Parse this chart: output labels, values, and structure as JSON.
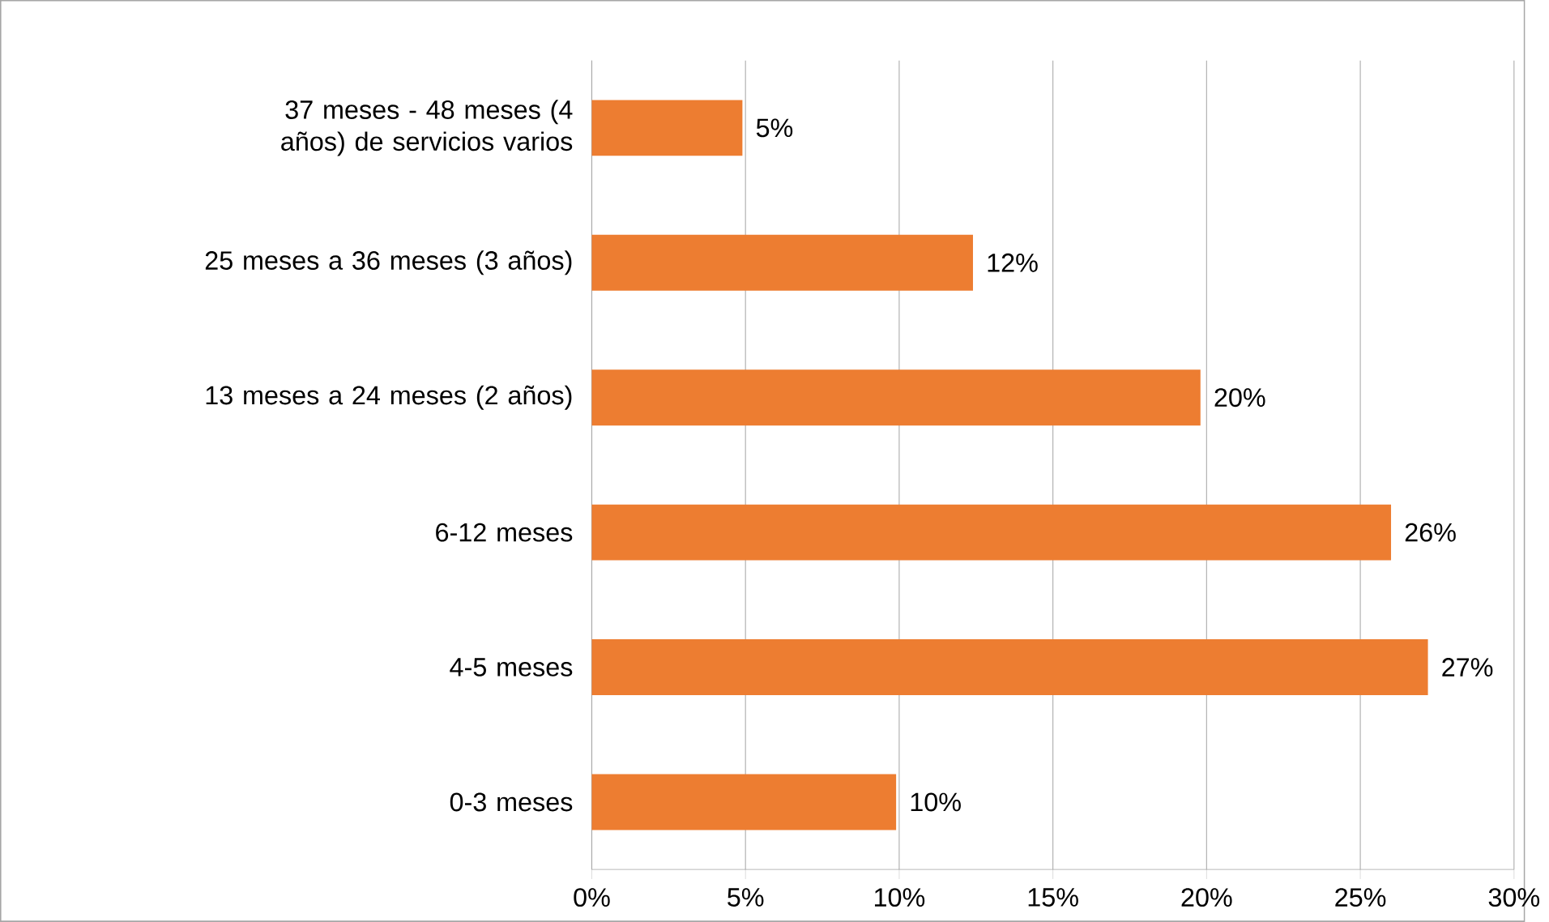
{
  "chart_data": {
    "type": "bar",
    "orientation": "horizontal",
    "categories": [
      "37 meses - 48 meses (4 años) de servicios varios",
      "25 meses a 36 meses (3 años)",
      "13 meses a 24 meses (2 años)",
      "6-12 meses",
      "4-5 meses",
      "0-3 meses"
    ],
    "values": [
      4.9,
      12.4,
      19.8,
      26,
      27.2,
      9.9
    ],
    "value_labels": [
      "5%",
      "12%",
      "20%",
      "26%",
      "27%",
      "10%"
    ],
    "color": "#ed7d31",
    "xlim": [
      0,
      30
    ],
    "xticks": [
      {
        "value": 0,
        "label": "0%"
      },
      {
        "value": 5,
        "label": "5%"
      },
      {
        "value": 10,
        "label": "10%"
      },
      {
        "value": 15,
        "label": "15%"
      },
      {
        "value": 20,
        "label": "20%"
      },
      {
        "value": 25,
        "label": "25%"
      },
      {
        "value": 30,
        "label": "30%"
      }
    ],
    "grid": "x"
  }
}
